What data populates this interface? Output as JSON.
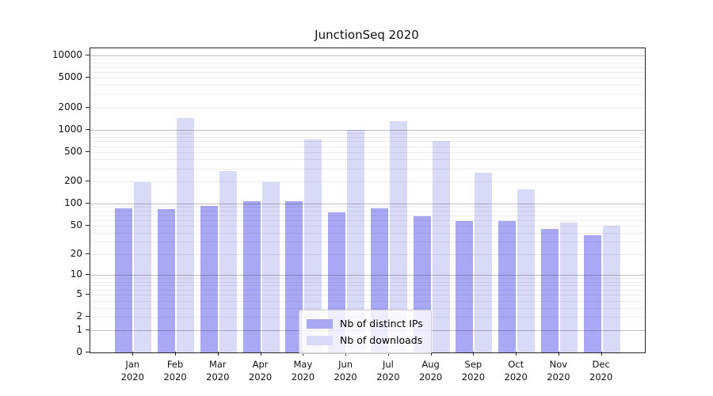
{
  "title": "JunctionSeq 2020",
  "chart_data": {
    "type": "bar",
    "title": "JunctionSeq 2020",
    "scale": "log10(value+1)",
    "grid": true,
    "ylim": [
      0,
      12500
    ],
    "y_ticks": [
      0,
      1,
      2,
      5,
      10,
      20,
      50,
      100,
      200,
      500,
      1000,
      2000,
      5000,
      10000
    ],
    "categories": [
      "Jan\n2020",
      "Feb\n2020",
      "Mar\n2020",
      "Apr\n2020",
      "May\n2020",
      "Jun\n2020",
      "Jul\n2020",
      "Aug\n2020",
      "Sep\n2020",
      "Oct\n2020",
      "Nov\n2020",
      "Dec\n2020"
    ],
    "series": [
      {
        "name": "Nb of distinct IPs",
        "color": "#a8a8f5",
        "values": [
          86,
          85,
          94,
          108,
          107,
          76,
          87,
          68,
          58,
          58,
          45,
          37
        ]
      },
      {
        "name": "Nb of downloads",
        "color": "#d9d9f8",
        "values": [
          195,
          1450,
          280,
          196,
          740,
          1005,
          1300,
          700,
          262,
          155,
          55,
          50
        ]
      }
    ],
    "legend": {
      "position": "bottom-center"
    }
  },
  "colors": {
    "background": "#ffffff",
    "axis": "#262626",
    "major_grid": "#c0c0c0",
    "minor_grid": "#ededed",
    "legend_border": "#cccccc",
    "bar_ips": "#a8a8f5",
    "bar_downloads": "#d9d9f8"
  }
}
